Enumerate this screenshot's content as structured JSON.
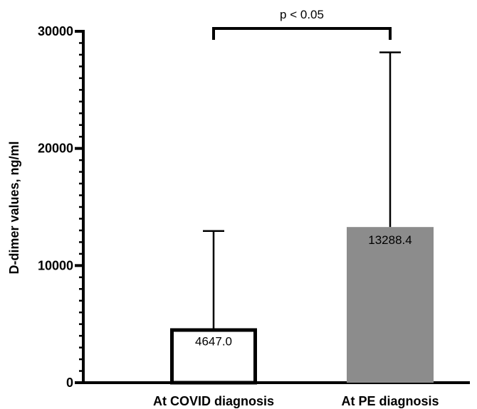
{
  "chart_data": {
    "type": "bar",
    "categories": [
      "At COVID diagnosis",
      "At PE diagnosis"
    ],
    "values": [
      4647.0,
      13288.4
    ],
    "value_labels": [
      "4647.0",
      "13288.4"
    ],
    "error_upper": [
      12950,
      28200
    ],
    "ylabel": "D-dimer values, ng/ml",
    "xlabel": "",
    "title": "",
    "ylim": [
      0,
      30000
    ],
    "yticks": [
      0,
      10000,
      20000,
      30000
    ],
    "ytick_labels": [
      "0",
      "10000",
      "20000",
      "30000"
    ],
    "bar_styles": [
      {
        "fill": "#ffffff",
        "stroke": "#000000"
      },
      {
        "fill": "#8c8c8c",
        "stroke": "none"
      }
    ],
    "significance": {
      "from": 0,
      "to": 1,
      "label": "p < 0.05"
    },
    "grid": false,
    "legend": "none"
  }
}
